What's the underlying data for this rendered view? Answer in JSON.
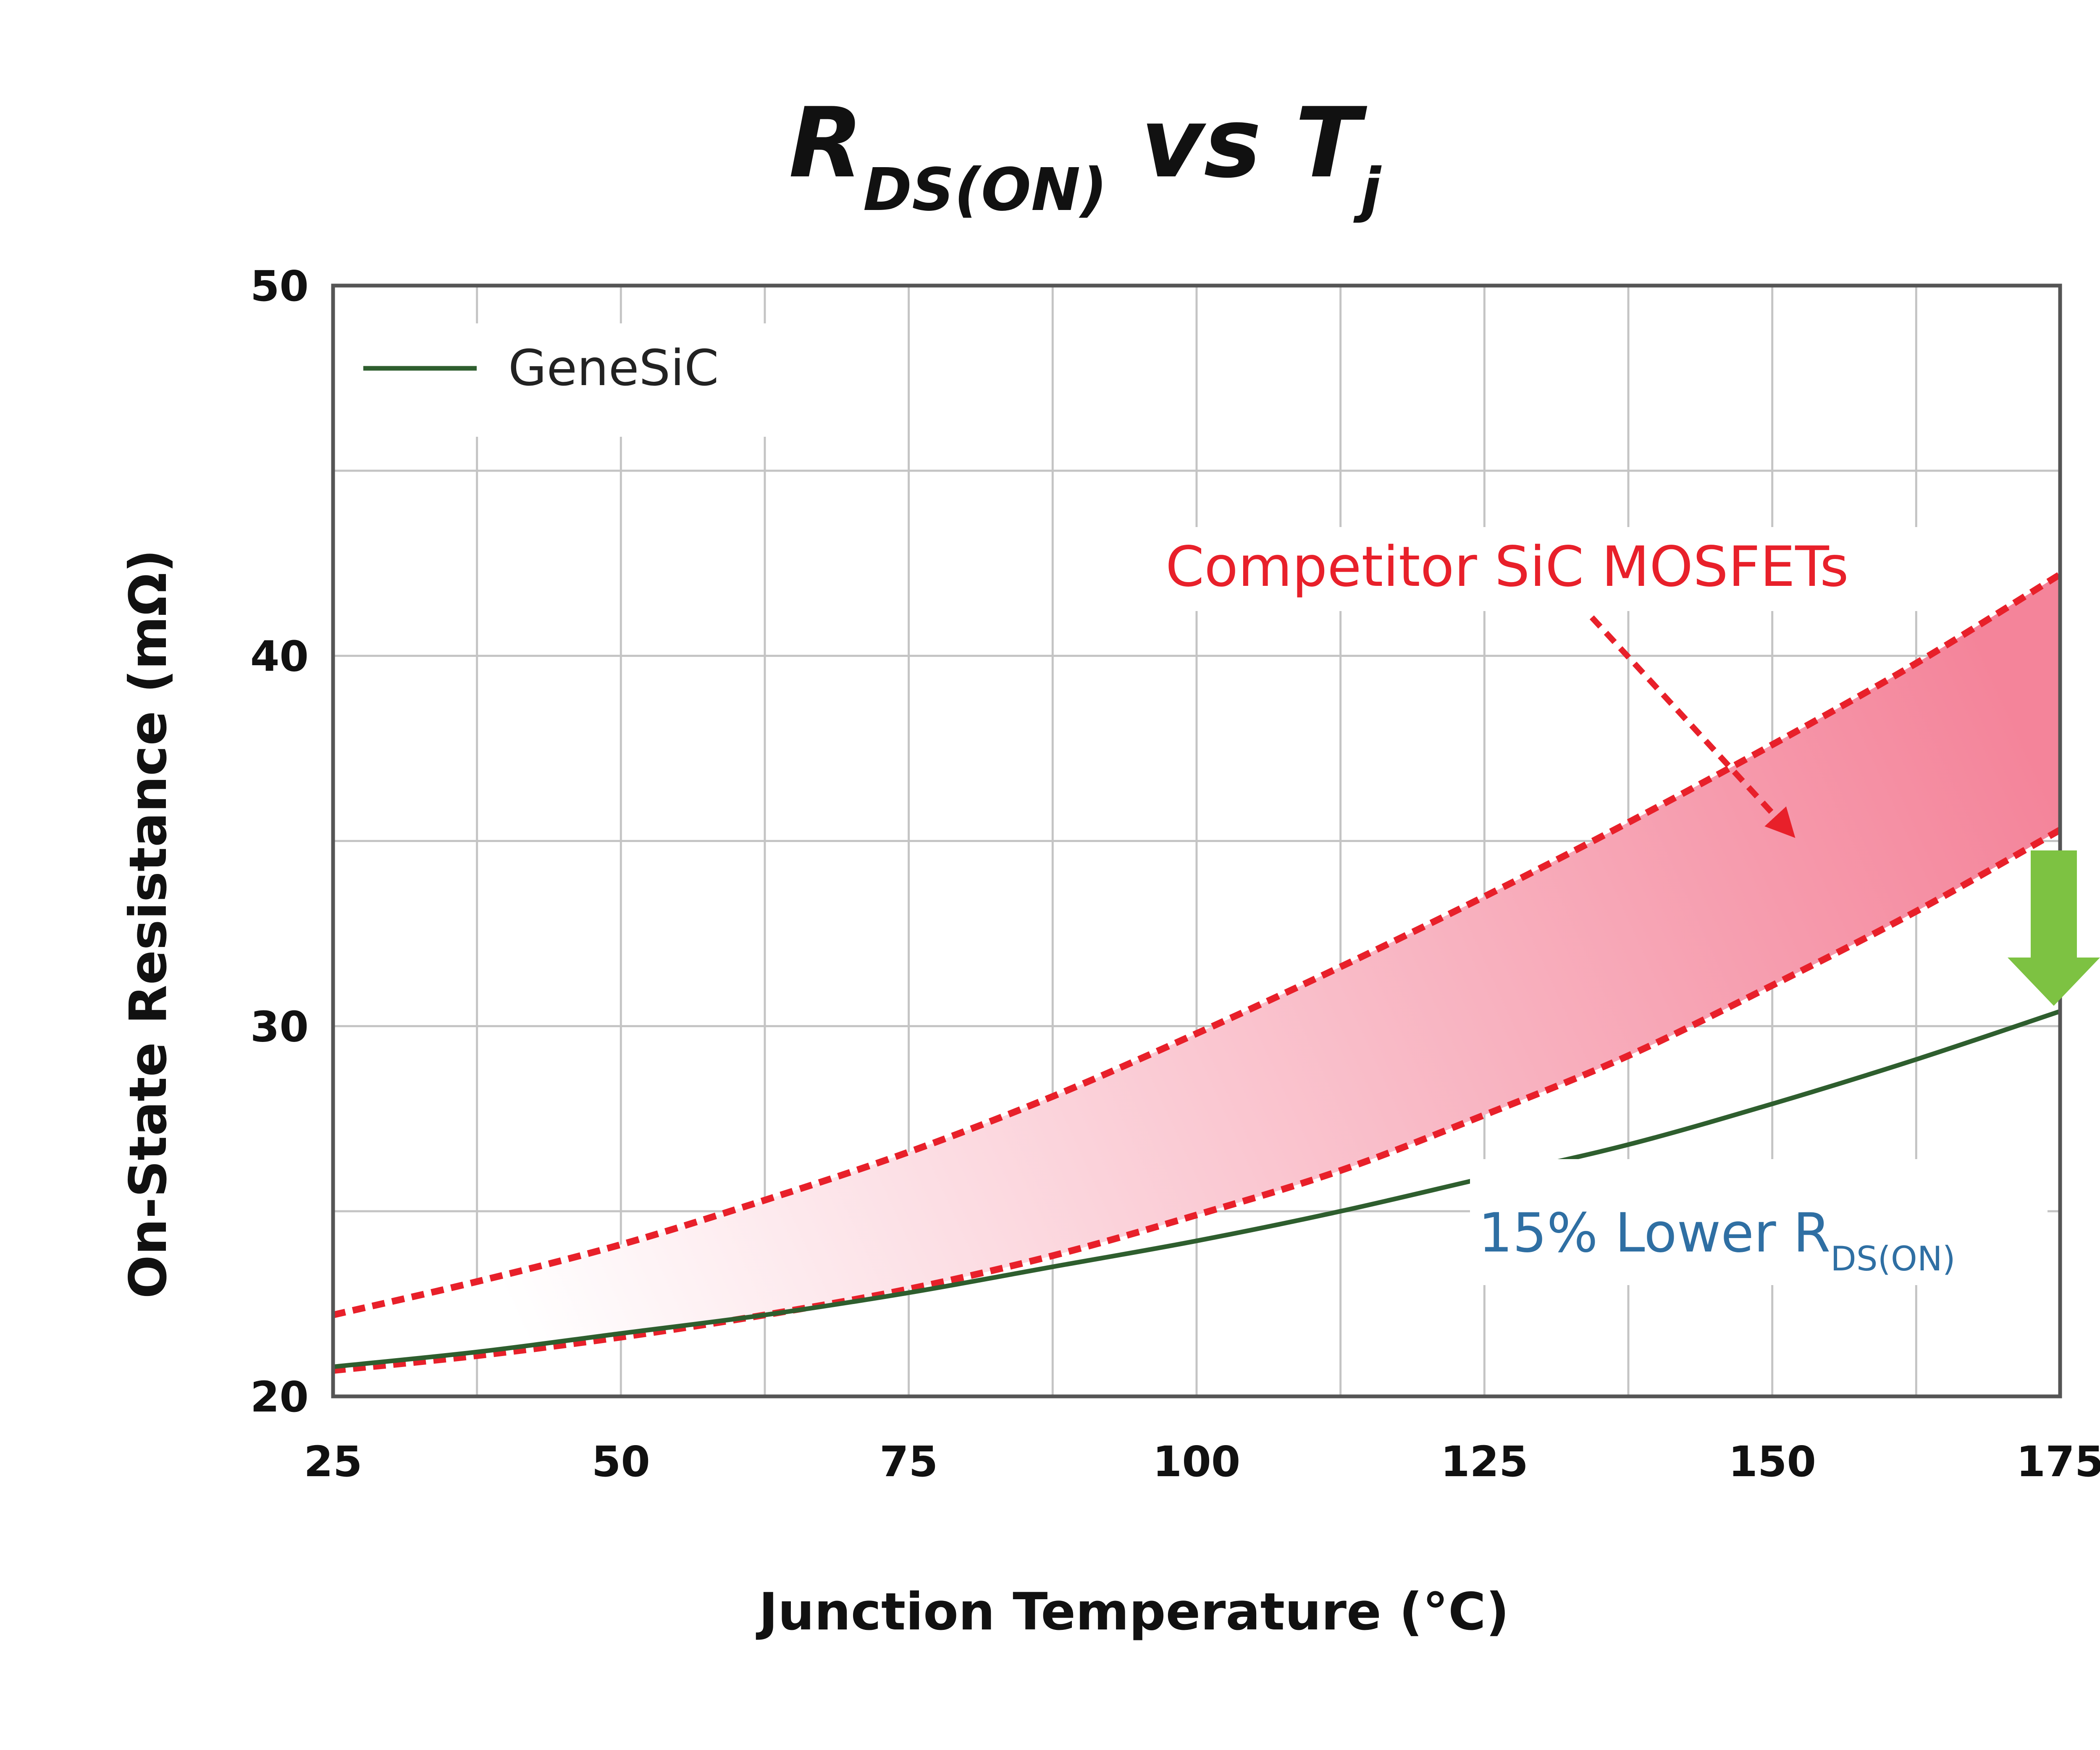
{
  "chart_data": {
    "type": "line",
    "title": {
      "main": "R",
      "main_sub": "DS(ON)",
      "middle": " vs ",
      "end": "T",
      "end_sub": "j"
    },
    "xlabel": "Junction Temperature (°C)",
    "ylabel": "On-State Resistance (mΩ)",
    "xlim": [
      25,
      175
    ],
    "ylim": [
      20,
      50
    ],
    "x_ticks": [
      "25",
      "50",
      "75",
      "100",
      "125",
      "150",
      "175"
    ],
    "y_ticks": [
      "20",
      "30",
      "40",
      "50"
    ],
    "grid": true,
    "legend_position": "top-left",
    "series": [
      {
        "name": "GeneSiC",
        "style": "solid",
        "color": "#2e5e2e",
        "x": [
          25,
          37.5,
          50,
          62.5,
          75,
          87.5,
          100,
          112.5,
          125,
          137.5,
          150,
          162.5,
          175
        ],
        "y": [
          20.8,
          21.2,
          21.7,
          22.2,
          22.8,
          23.5,
          24.2,
          25.0,
          25.9,
          26.8,
          27.9,
          29.1,
          30.4
        ]
      }
    ],
    "band": {
      "label": "Competitor SiC MOSFETs",
      "color": "#e8202a",
      "fill_color": "#f4849a",
      "x": [
        25,
        37.5,
        50,
        62.5,
        75,
        87.5,
        100,
        112.5,
        125,
        137.5,
        150,
        162.5,
        175
      ],
      "upper": [
        22.2,
        23.1,
        24.1,
        25.3,
        26.6,
        28.1,
        29.8,
        31.6,
        33.5,
        35.5,
        37.6,
        39.8,
        42.2
      ],
      "lower": [
        20.7,
        21.1,
        21.6,
        22.2,
        22.9,
        23.8,
        24.9,
        26.1,
        27.6,
        29.2,
        31.1,
        33.1,
        35.3
      ]
    },
    "annotations": {
      "lower_prefix": "15% Lower R",
      "lower_sub": "DS(ON)",
      "arrow_color": "#7dc242"
    }
  }
}
